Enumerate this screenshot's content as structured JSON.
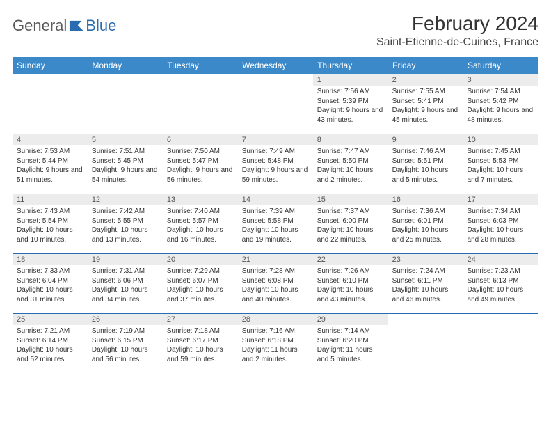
{
  "logo": {
    "general": "General",
    "blue": "Blue"
  },
  "title": "February 2024",
  "location": "Saint-Etienne-de-Cuines, France",
  "colors": {
    "header_bg": "#3b89c9",
    "border": "#2a6cb0",
    "daynum_bg": "#ececec"
  },
  "weekdays": [
    "Sunday",
    "Monday",
    "Tuesday",
    "Wednesday",
    "Thursday",
    "Friday",
    "Saturday"
  ],
  "weeks": [
    [
      {
        "n": "",
        "sr": "",
        "ss": "",
        "dl": ""
      },
      {
        "n": "",
        "sr": "",
        "ss": "",
        "dl": ""
      },
      {
        "n": "",
        "sr": "",
        "ss": "",
        "dl": ""
      },
      {
        "n": "",
        "sr": "",
        "ss": "",
        "dl": ""
      },
      {
        "n": "1",
        "sr": "Sunrise: 7:56 AM",
        "ss": "Sunset: 5:39 PM",
        "dl": "Daylight: 9 hours and 43 minutes."
      },
      {
        "n": "2",
        "sr": "Sunrise: 7:55 AM",
        "ss": "Sunset: 5:41 PM",
        "dl": "Daylight: 9 hours and 45 minutes."
      },
      {
        "n": "3",
        "sr": "Sunrise: 7:54 AM",
        "ss": "Sunset: 5:42 PM",
        "dl": "Daylight: 9 hours and 48 minutes."
      }
    ],
    [
      {
        "n": "4",
        "sr": "Sunrise: 7:53 AM",
        "ss": "Sunset: 5:44 PM",
        "dl": "Daylight: 9 hours and 51 minutes."
      },
      {
        "n": "5",
        "sr": "Sunrise: 7:51 AM",
        "ss": "Sunset: 5:45 PM",
        "dl": "Daylight: 9 hours and 54 minutes."
      },
      {
        "n": "6",
        "sr": "Sunrise: 7:50 AM",
        "ss": "Sunset: 5:47 PM",
        "dl": "Daylight: 9 hours and 56 minutes."
      },
      {
        "n": "7",
        "sr": "Sunrise: 7:49 AM",
        "ss": "Sunset: 5:48 PM",
        "dl": "Daylight: 9 hours and 59 minutes."
      },
      {
        "n": "8",
        "sr": "Sunrise: 7:47 AM",
        "ss": "Sunset: 5:50 PM",
        "dl": "Daylight: 10 hours and 2 minutes."
      },
      {
        "n": "9",
        "sr": "Sunrise: 7:46 AM",
        "ss": "Sunset: 5:51 PM",
        "dl": "Daylight: 10 hours and 5 minutes."
      },
      {
        "n": "10",
        "sr": "Sunrise: 7:45 AM",
        "ss": "Sunset: 5:53 PM",
        "dl": "Daylight: 10 hours and 7 minutes."
      }
    ],
    [
      {
        "n": "11",
        "sr": "Sunrise: 7:43 AM",
        "ss": "Sunset: 5:54 PM",
        "dl": "Daylight: 10 hours and 10 minutes."
      },
      {
        "n": "12",
        "sr": "Sunrise: 7:42 AM",
        "ss": "Sunset: 5:55 PM",
        "dl": "Daylight: 10 hours and 13 minutes."
      },
      {
        "n": "13",
        "sr": "Sunrise: 7:40 AM",
        "ss": "Sunset: 5:57 PM",
        "dl": "Daylight: 10 hours and 16 minutes."
      },
      {
        "n": "14",
        "sr": "Sunrise: 7:39 AM",
        "ss": "Sunset: 5:58 PM",
        "dl": "Daylight: 10 hours and 19 minutes."
      },
      {
        "n": "15",
        "sr": "Sunrise: 7:37 AM",
        "ss": "Sunset: 6:00 PM",
        "dl": "Daylight: 10 hours and 22 minutes."
      },
      {
        "n": "16",
        "sr": "Sunrise: 7:36 AM",
        "ss": "Sunset: 6:01 PM",
        "dl": "Daylight: 10 hours and 25 minutes."
      },
      {
        "n": "17",
        "sr": "Sunrise: 7:34 AM",
        "ss": "Sunset: 6:03 PM",
        "dl": "Daylight: 10 hours and 28 minutes."
      }
    ],
    [
      {
        "n": "18",
        "sr": "Sunrise: 7:33 AM",
        "ss": "Sunset: 6:04 PM",
        "dl": "Daylight: 10 hours and 31 minutes."
      },
      {
        "n": "19",
        "sr": "Sunrise: 7:31 AM",
        "ss": "Sunset: 6:06 PM",
        "dl": "Daylight: 10 hours and 34 minutes."
      },
      {
        "n": "20",
        "sr": "Sunrise: 7:29 AM",
        "ss": "Sunset: 6:07 PM",
        "dl": "Daylight: 10 hours and 37 minutes."
      },
      {
        "n": "21",
        "sr": "Sunrise: 7:28 AM",
        "ss": "Sunset: 6:08 PM",
        "dl": "Daylight: 10 hours and 40 minutes."
      },
      {
        "n": "22",
        "sr": "Sunrise: 7:26 AM",
        "ss": "Sunset: 6:10 PM",
        "dl": "Daylight: 10 hours and 43 minutes."
      },
      {
        "n": "23",
        "sr": "Sunrise: 7:24 AM",
        "ss": "Sunset: 6:11 PM",
        "dl": "Daylight: 10 hours and 46 minutes."
      },
      {
        "n": "24",
        "sr": "Sunrise: 7:23 AM",
        "ss": "Sunset: 6:13 PM",
        "dl": "Daylight: 10 hours and 49 minutes."
      }
    ],
    [
      {
        "n": "25",
        "sr": "Sunrise: 7:21 AM",
        "ss": "Sunset: 6:14 PM",
        "dl": "Daylight: 10 hours and 52 minutes."
      },
      {
        "n": "26",
        "sr": "Sunrise: 7:19 AM",
        "ss": "Sunset: 6:15 PM",
        "dl": "Daylight: 10 hours and 56 minutes."
      },
      {
        "n": "27",
        "sr": "Sunrise: 7:18 AM",
        "ss": "Sunset: 6:17 PM",
        "dl": "Daylight: 10 hours and 59 minutes."
      },
      {
        "n": "28",
        "sr": "Sunrise: 7:16 AM",
        "ss": "Sunset: 6:18 PM",
        "dl": "Daylight: 11 hours and 2 minutes."
      },
      {
        "n": "29",
        "sr": "Sunrise: 7:14 AM",
        "ss": "Sunset: 6:20 PM",
        "dl": "Daylight: 11 hours and 5 minutes."
      },
      {
        "n": "",
        "sr": "",
        "ss": "",
        "dl": ""
      },
      {
        "n": "",
        "sr": "",
        "ss": "",
        "dl": ""
      }
    ]
  ]
}
